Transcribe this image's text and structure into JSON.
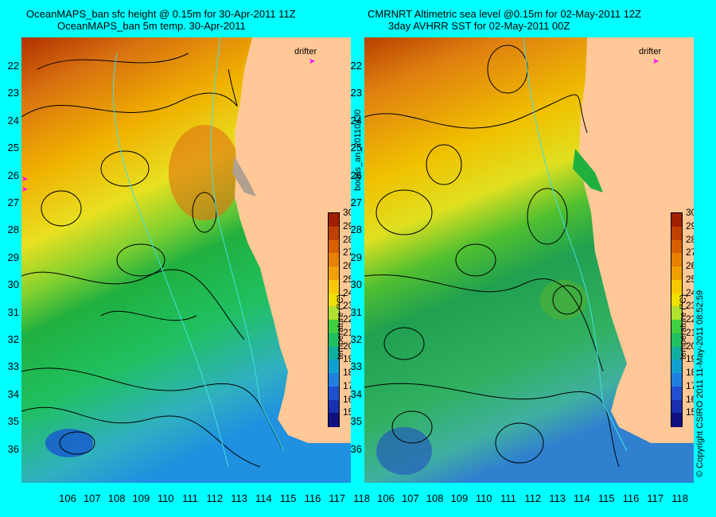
{
  "left_panel": {
    "title_line1": "OceanMAPS_ban sfc height @ 0.15m for 30-Apr-2011 11Z",
    "title_line2": "OceanMAPS_ban 5m temp. 30-Apr-2011"
  },
  "right_panel": {
    "title_line1": "CMRNRT Altimetric sea level  @0.15m  for 02-May-2011 12Z",
    "title_line2": "3day AVHRR SST for 02-May-2011 00Z"
  },
  "drifter_label": "drifter",
  "side_label": "bodas_an_20110430",
  "copyright": "© Copyright CSIRO 2011   11-May-2011 08:52:59",
  "latitudes": [
    "22",
    "23",
    "24",
    "25",
    "26",
    "27",
    "28",
    "29",
    "30",
    "31",
    "32",
    "33",
    "34",
    "35",
    "36"
  ],
  "longitudes": [
    "106",
    "107",
    "108",
    "109",
    "110",
    "111",
    "112",
    "113",
    "114",
    "115",
    "116",
    "117",
    "118"
  ],
  "colorbar": {
    "title": "temperature (°C)",
    "ticks": [
      "30",
      "29",
      "28",
      "27",
      "26",
      "25",
      "24",
      "23",
      "22",
      "21",
      "20",
      "19",
      "18",
      "17",
      "16",
      "15"
    ],
    "colors": [
      "#a02000",
      "#c04000",
      "#d86000",
      "#e88000",
      "#f0a000",
      "#f8c800",
      "#f0e000",
      "#b0e030",
      "#40d040",
      "#20c060",
      "#10b0a0",
      "#10a0d0",
      "#2080e0",
      "#2050d0",
      "#1830b0",
      "#101080"
    ]
  },
  "colors": {
    "land": "#ffc896",
    "frame": "#00ffff",
    "contour": "#000000",
    "isobath": "#40e0e0",
    "drifter": "#ff00ff"
  }
}
